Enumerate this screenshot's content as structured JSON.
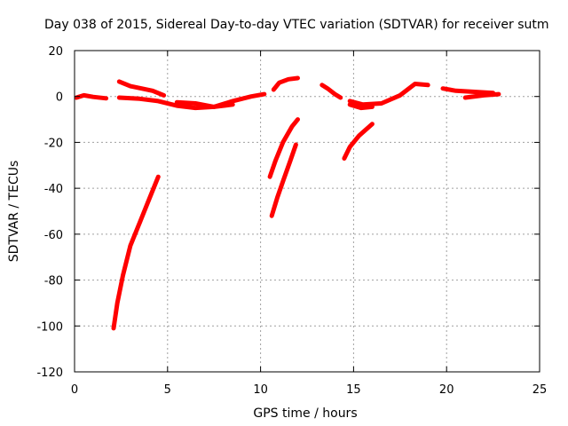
{
  "chart_data": {
    "type": "scatter",
    "title": "Day 038 of 2015, Sidereal Day-to-day VTEC variation (SDTVAR) for receiver sutm",
    "xlabel": "GPS time / hours",
    "ylabel": "SDTVAR / TECUs",
    "xlim": [
      0,
      25
    ],
    "ylim": [
      -120,
      20
    ],
    "xticks": [
      0,
      5,
      10,
      15,
      20,
      25
    ],
    "yticks": [
      -120,
      -100,
      -80,
      -60,
      -40,
      -20,
      0,
      20
    ],
    "grid": true,
    "color": "#ff0000",
    "series": [
      {
        "x": [
          0.1,
          0.5,
          1.0,
          1.7
        ],
        "y": [
          -0.5,
          0.5,
          -0.2,
          -0.8
        ]
      },
      {
        "x": [
          2.4,
          3.0,
          3.6,
          4.2,
          4.8
        ],
        "y": [
          6.5,
          4.5,
          3.5,
          2.5,
          0.5
        ]
      },
      {
        "x": [
          2.4,
          3.5,
          4.5,
          5.5,
          6.5,
          7.5,
          8.5,
          9.5,
          10.2
        ],
        "y": [
          -0.5,
          -1.0,
          -2.0,
          -4.0,
          -5.0,
          -4.5,
          -2.0,
          0.0,
          1.0
        ]
      },
      {
        "x": [
          5.5,
          6.5,
          7.5,
          8.5
        ],
        "y": [
          -2.5,
          -3.0,
          -4.5,
          -3.5
        ]
      },
      {
        "x": [
          2.1,
          2.3,
          2.6,
          3.0,
          3.5,
          4.0,
          4.5
        ],
        "y": [
          -101,
          -90,
          -78,
          -65,
          -55,
          -45,
          -35
        ]
      },
      {
        "x": [
          10.5,
          10.8,
          11.2,
          11.7,
          12.0
        ],
        "y": [
          -35,
          -28,
          -20,
          -13,
          -10
        ]
      },
      {
        "x": [
          10.6,
          10.9,
          11.2,
          11.6,
          11.9
        ],
        "y": [
          -52,
          -44,
          -37,
          -28,
          -21
        ]
      },
      {
        "x": [
          10.7,
          11.0,
          11.5,
          12.0
        ],
        "y": [
          3.0,
          6.0,
          7.5,
          8.0
        ]
      },
      {
        "x": [
          13.3,
          13.6,
          14.0,
          14.3
        ],
        "y": [
          5.0,
          3.5,
          1.0,
          -0.5
        ]
      },
      {
        "x": [
          14.8,
          15.5,
          16.5,
          17.5,
          18.3,
          19.0
        ],
        "y": [
          -2.0,
          -3.5,
          -3.0,
          0.5,
          5.5,
          5.0
        ]
      },
      {
        "x": [
          14.8,
          15.4,
          16.0
        ],
        "y": [
          -3.5,
          -5.0,
          -4.5
        ]
      },
      {
        "x": [
          14.5,
          14.8,
          15.3,
          16.0
        ],
        "y": [
          -27,
          -22,
          -17,
          -12
        ]
      },
      {
        "x": [
          19.8,
          20.5,
          21.5,
          22.5
        ],
        "y": [
          3.5,
          2.5,
          2.0,
          1.5
        ]
      },
      {
        "x": [
          21.0,
          22.0,
          22.8
        ],
        "y": [
          -0.5,
          0.5,
          1.0
        ]
      }
    ]
  }
}
